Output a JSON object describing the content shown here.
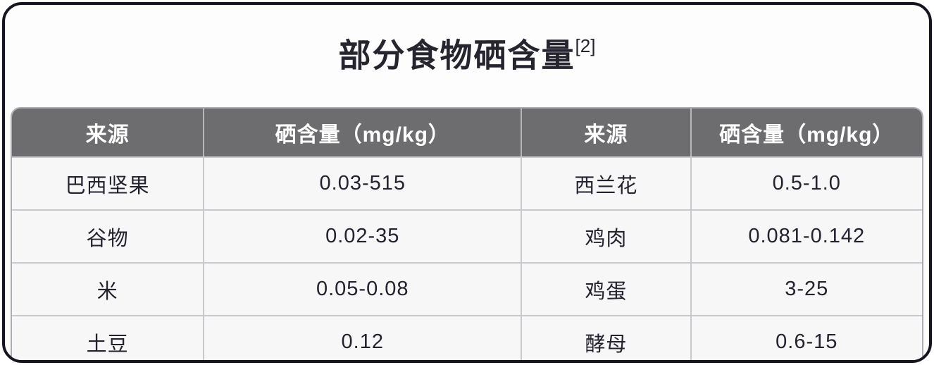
{
  "page": {
    "title": "部分食物硒含量",
    "title_superscript": "[2]"
  },
  "chart_data": {
    "type": "table",
    "title": "部分食物硒含量",
    "reference_superscript": "[2]",
    "columns": [
      "来源",
      "硒含量（mg/kg）",
      "来源",
      "硒含量（mg/kg）"
    ],
    "rows": [
      [
        "巴西坚果",
        "0.03-515",
        "西兰花",
        "0.5-1.0"
      ],
      [
        "谷物",
        "0.02-35",
        "鸡肉",
        "0.081-0.142"
      ],
      [
        "米",
        "0.05-0.08",
        "鸡蛋",
        "3-25"
      ],
      [
        "土豆",
        "0.12",
        "酵母",
        "0.6-15"
      ]
    ],
    "layout_hints": {
      "column_width_percent": [
        21.0,
        34.9,
        18.6,
        25.5
      ],
      "header_style": "bold white on gray",
      "grid": "light horizontal and vertical dividers"
    }
  },
  "colors": {
    "outer_border": "#17131f",
    "page_background": "#fdfdfd",
    "header_background": "#6d6d6f",
    "header_text": "#ffffff",
    "cell_background": "#f8f7f7",
    "cell_text": "#232330",
    "divider": "#c9c8cd",
    "table_border": "#adacb2",
    "title_text": "#26242e"
  }
}
